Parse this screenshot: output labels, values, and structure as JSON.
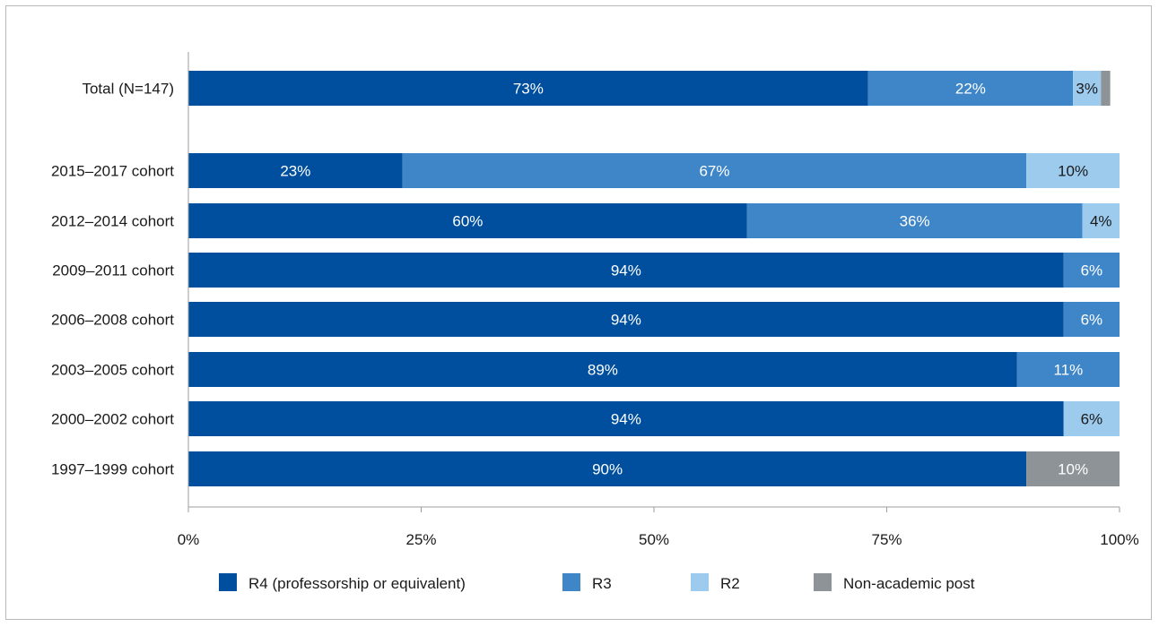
{
  "colors": {
    "R4": "#004f9e",
    "R3": "#3f86c9",
    "R2": "#9ccbee",
    "non_academic": "#8e9397",
    "axis": "#9e9e9e",
    "text": "#1a1a1a",
    "label_light": "#ffffff",
    "label_dark": "#1a1a1a"
  },
  "chart_data": {
    "type": "bar",
    "orientation": "horizontal",
    "stacked": true,
    "title": "",
    "xlabel": "",
    "ylabel": "",
    "xlim": [
      0,
      100
    ],
    "x_ticks": [
      "0%",
      "25%",
      "50%",
      "75%",
      "100%"
    ],
    "grid": false,
    "legend_position": "bottom",
    "categories": [
      "Total (N=147)",
      "2015–2017 cohort",
      "2012–2014 cohort",
      "2009–2011 cohort",
      "2006–2008 cohort",
      "2003–2005 cohort",
      "2000–2002 cohort",
      "1997–1999 cohort"
    ],
    "series": [
      {
        "name": "R4 (professorship or equivalent)",
        "color": "#004f9e",
        "values": [
          73,
          23,
          60,
          94,
          94,
          89,
          94,
          90
        ],
        "labels": [
          "73%",
          "23%",
          "60%",
          "94%",
          "94%",
          "89%",
          "94%",
          "90%"
        ]
      },
      {
        "name": "R3",
        "color": "#3f86c9",
        "values": [
          22,
          67,
          36,
          6,
          6,
          11,
          0,
          0
        ],
        "labels": [
          "22%",
          "67%",
          "36%",
          "6%",
          "6%",
          "11%",
          "",
          ""
        ]
      },
      {
        "name": "R2",
        "color": "#9ccbee",
        "values": [
          3,
          10,
          4,
          0,
          0,
          0,
          6,
          0
        ],
        "labels": [
          "3%",
          "10%",
          "4%",
          "",
          "",
          "",
          "6%",
          ""
        ]
      },
      {
        "name": "Non-academic post",
        "color": "#8e9397",
        "values": [
          1,
          0,
          0,
          0,
          0,
          0,
          0,
          10
        ],
        "labels": [
          "",
          "",
          "",
          "",
          "",
          "",
          "",
          "10%"
        ]
      }
    ]
  }
}
